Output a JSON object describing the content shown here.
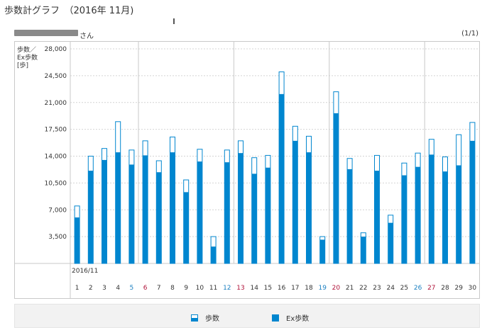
{
  "page": {
    "title": "歩数計グラフ　（2016年 11月)",
    "user_suffix": "さん",
    "pager": "(1/1)"
  },
  "legend": {
    "steps": "歩数",
    "ex_steps": "Ex歩数"
  },
  "colors": {
    "bar": "#0086cf",
    "weekday_text": "#333333",
    "saturday": "#1a7fc0",
    "sunday": "#b0133a",
    "grid": "#d4d4d4",
    "week_line": "#c8c8c8"
  },
  "chart_data": {
    "type": "bar",
    "ylabel_lines": [
      "歩数／",
      "Ex歩数",
      "[歩]"
    ],
    "ylim": [
      0,
      28000
    ],
    "yticks": [
      3500,
      7000,
      10500,
      14000,
      17500,
      21000,
      24500,
      28000
    ],
    "ytick_labels": [
      "3,500",
      "7,000",
      "10,500",
      "14,000",
      "17,500",
      "21,000",
      "24,500",
      "28,000"
    ],
    "month_label": "2016/11",
    "categories": [
      "1",
      "2",
      "3",
      "4",
      "5",
      "6",
      "7",
      "8",
      "9",
      "10",
      "11",
      "12",
      "13",
      "14",
      "15",
      "16",
      "17",
      "18",
      "19",
      "20",
      "21",
      "22",
      "23",
      "24",
      "25",
      "26",
      "27",
      "28",
      "29",
      "30"
    ],
    "day_types": [
      "w",
      "w",
      "w",
      "w",
      "sat",
      "sun",
      "w",
      "w",
      "w",
      "w",
      "w",
      "sat",
      "sun",
      "w",
      "w",
      "w",
      "w",
      "w",
      "sat",
      "sun",
      "w",
      "w",
      "w",
      "w",
      "w",
      "sat",
      "sun",
      "w",
      "w",
      "w"
    ],
    "series": [
      {
        "name": "歩数",
        "values": [
          7500,
          14000,
          15000,
          18500,
          14800,
          16000,
          13400,
          16500,
          10900,
          14900,
          3500,
          14800,
          16000,
          13800,
          14100,
          25000,
          17900,
          16600,
          3500,
          22400,
          13700,
          4000,
          14100,
          6300,
          13100,
          14400,
          16200,
          13900,
          16800,
          18400
        ]
      },
      {
        "name": "Ex歩数",
        "values": [
          6000,
          12100,
          13500,
          14500,
          12900,
          14100,
          11900,
          14500,
          9300,
          13300,
          2200,
          13200,
          14400,
          11700,
          12500,
          22100,
          16000,
          14500,
          3100,
          19600,
          12300,
          3500,
          12100,
          5300,
          11500,
          12600,
          14200,
          12000,
          12800,
          16000
        ]
      }
    ]
  }
}
